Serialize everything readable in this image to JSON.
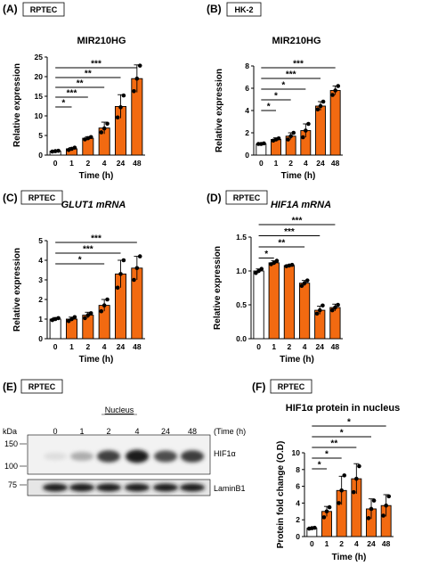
{
  "colors": {
    "bar": "#f26a11",
    "control_bar": "#ffffff",
    "stroke": "#000000",
    "dot": "#000000"
  },
  "chart_data": [
    {
      "id": "A",
      "type": "bar",
      "panel_label": "(A)",
      "cell_line": "RPTEC",
      "title": "MIR210HG",
      "title_italic": false,
      "xlabel": "Time (h)",
      "ylabel": "Relative expression",
      "categories": [
        "0",
        "1",
        "2",
        "4",
        "24",
        "48"
      ],
      "values": [
        1.0,
        1.6,
        4.3,
        6.9,
        12.4,
        19.5
      ],
      "errors": [
        0.15,
        0.3,
        0.4,
        1.5,
        3.0,
        3.5
      ],
      "points": [
        [
          0.9,
          1.0,
          1.1
        ],
        [
          1.3,
          1.6,
          1.9
        ],
        [
          4.0,
          4.3,
          4.6
        ],
        [
          5.8,
          6.8,
          8.0
        ],
        [
          9.6,
          12.2,
          15.2
        ],
        [
          16.3,
          19.5,
          22.8
        ]
      ],
      "ylim": [
        0,
        25
      ],
      "yticks": [
        0,
        5,
        10,
        15,
        20,
        25
      ],
      "ytick_labels": [
        "0",
        "5",
        "10",
        "15",
        "20",
        "25"
      ],
      "significance": [
        {
          "to": "1",
          "label": "*"
        },
        {
          "to": "2",
          "label": "***"
        },
        {
          "to": "4",
          "label": "**"
        },
        {
          "to": "24",
          "label": "**"
        },
        {
          "to": "48",
          "label": "***"
        }
      ]
    },
    {
      "id": "B",
      "type": "bar",
      "panel_label": "(B)",
      "cell_line": "HK-2",
      "title": "MIR210HG",
      "title_italic": false,
      "xlabel": "Time (h)",
      "ylabel": "Relative expression",
      "categories": [
        "0",
        "1",
        "2",
        "4",
        "24",
        "48"
      ],
      "values": [
        1.0,
        1.4,
        1.7,
        2.2,
        4.4,
        5.8
      ],
      "errors": [
        0.05,
        0.15,
        0.3,
        0.6,
        0.4,
        0.4
      ],
      "points": [
        [
          1.0,
          1.0,
          1.05
        ],
        [
          1.3,
          1.4,
          1.5
        ],
        [
          1.4,
          1.7,
          2.0
        ],
        [
          1.6,
          2.2,
          2.8
        ],
        [
          4.1,
          4.4,
          4.8
        ],
        [
          5.4,
          5.8,
          6.2
        ]
      ],
      "ylim": [
        0,
        8
      ],
      "yticks": [
        0,
        2,
        4,
        6,
        8
      ],
      "ytick_labels": [
        "0",
        "2",
        "4",
        "6",
        "8"
      ],
      "significance": [
        {
          "to": "1",
          "label": "*"
        },
        {
          "to": "2",
          "label": "*"
        },
        {
          "to": "4",
          "label": "*"
        },
        {
          "to": "24",
          "label": "***"
        },
        {
          "to": "48",
          "label": "***"
        }
      ]
    },
    {
      "id": "C",
      "type": "bar",
      "panel_label": "(C)",
      "cell_line": "RPTEC",
      "title": "GLUT1 mRNA",
      "title_italic": true,
      "xlabel": "Time (h)",
      "ylabel": "Relative expression",
      "categories": [
        "0",
        "1",
        "2",
        "4",
        "24",
        "48"
      ],
      "values": [
        1.0,
        1.0,
        1.2,
        1.7,
        3.3,
        3.6
      ],
      "errors": [
        0.08,
        0.1,
        0.15,
        0.3,
        0.7,
        0.6
      ],
      "points": [
        [
          0.95,
          1.0,
          1.05
        ],
        [
          0.9,
          1.0,
          1.1
        ],
        [
          1.05,
          1.2,
          1.3
        ],
        [
          1.4,
          1.7,
          2.0
        ],
        [
          2.6,
          3.3,
          4.0
        ],
        [
          3.0,
          3.6,
          4.2
        ]
      ],
      "ylim": [
        0,
        5
      ],
      "yticks": [
        0,
        1,
        2,
        3,
        4,
        5
      ],
      "ytick_labels": [
        "0",
        "1",
        "2",
        "3",
        "4",
        "5"
      ],
      "significance": [
        {
          "to": "4",
          "label": "*"
        },
        {
          "to": "24",
          "label": "***"
        },
        {
          "to": "48",
          "label": "***"
        }
      ]
    },
    {
      "id": "D",
      "type": "bar",
      "panel_label": "(D)",
      "cell_line": "RPTEC",
      "title": "HIF1A mRNA",
      "title_italic": true,
      "xlabel": "Time (h)",
      "ylabel": "Relative expression",
      "categories": [
        "0",
        "1",
        "2",
        "4",
        "24",
        "48"
      ],
      "values": [
        1.0,
        1.12,
        1.08,
        0.82,
        0.42,
        0.46
      ],
      "errors": [
        0.03,
        0.03,
        0.01,
        0.04,
        0.06,
        0.05
      ],
      "points": [
        [
          0.97,
          1.0,
          1.03
        ],
        [
          1.1,
          1.12,
          1.15
        ],
        [
          1.07,
          1.08,
          1.09
        ],
        [
          0.78,
          0.82,
          0.86
        ],
        [
          0.37,
          0.42,
          0.49
        ],
        [
          0.42,
          0.46,
          0.5
        ]
      ],
      "ylim": [
        0,
        1.5
      ],
      "yticks": [
        0,
        0.5,
        1.0,
        1.5
      ],
      "ytick_labels": [
        "0.0",
        "0.5",
        "1.0",
        "1.5"
      ],
      "significance": [
        {
          "to": "1",
          "label": "*"
        },
        {
          "to": "4",
          "label": "**"
        },
        {
          "to": "24",
          "label": "***"
        },
        {
          "to": "48",
          "label": "***"
        }
      ]
    },
    {
      "id": "F",
      "type": "bar",
      "panel_label": "(F)",
      "cell_line": "RPTEC",
      "title": "HIF1α protein in nucleus",
      "title_italic": false,
      "xlabel": "Time (h)",
      "ylabel": "Protein fold change (O.D)",
      "categories": [
        "0",
        "1",
        "2",
        "4",
        "24",
        "48"
      ],
      "values": [
        1.0,
        3.0,
        5.5,
        6.9,
        3.3,
        3.7
      ],
      "errors": [
        0.05,
        0.6,
        1.7,
        1.8,
        1.2,
        1.3
      ],
      "points": [
        [
          0.95,
          1.0,
          1.05
        ],
        [
          2.3,
          3.0,
          3.5
        ],
        [
          4.0,
          5.5,
          7.3
        ],
        [
          5.3,
          6.9,
          8.4
        ],
        [
          2.2,
          3.3,
          4.3
        ],
        [
          2.5,
          3.7,
          4.8
        ]
      ],
      "ylim": [
        0,
        10
      ],
      "yticks": [
        0,
        2,
        4,
        6,
        8,
        10
      ],
      "ytick_labels": [
        "0",
        "2",
        "4",
        "6",
        "8",
        "10"
      ],
      "significance": [
        {
          "to": "1",
          "label": "*"
        },
        {
          "to": "2",
          "label": "*"
        },
        {
          "to": "4",
          "label": "**"
        },
        {
          "to": "24",
          "label": "*"
        },
        {
          "to": "48",
          "label": "*"
        }
      ]
    }
  ],
  "western_blot": {
    "panel_label": "(E)",
    "cell_line": "RPTEC",
    "header": "Nucleus",
    "lanes": [
      "0",
      "1",
      "2",
      "4",
      "24",
      "48"
    ],
    "time_label": "(Time (h)",
    "kda_label": "kDa",
    "markers": [
      "150",
      "100",
      "75"
    ],
    "bands": [
      {
        "label": "HIF1α",
        "intensities": [
          0.08,
          0.3,
          0.78,
          0.95,
          0.72,
          0.8
        ]
      },
      {
        "label": "LaminB1",
        "intensities": [
          0.95,
          0.95,
          0.95,
          0.95,
          0.95,
          0.95
        ]
      }
    ]
  }
}
